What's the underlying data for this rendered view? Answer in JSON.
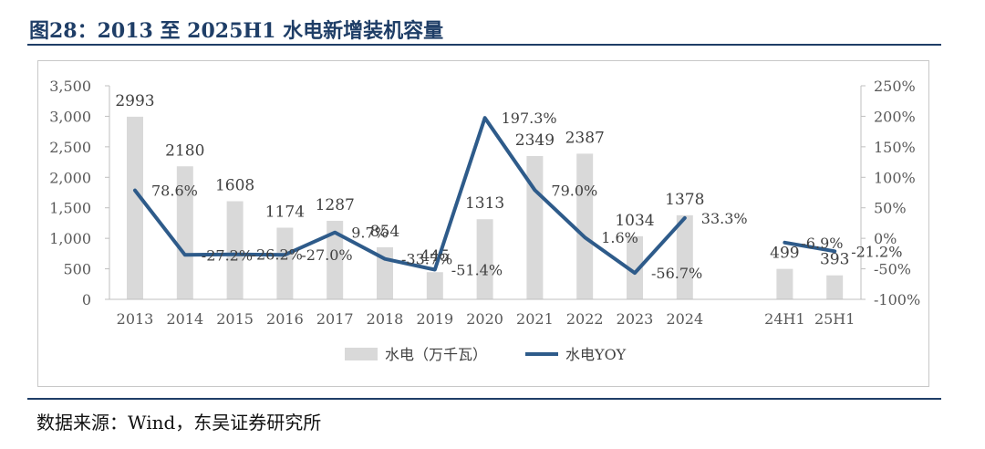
{
  "header": {
    "title": "图28：2013 至 2025H1 水电新增装机容量"
  },
  "footer": {
    "source": "数据来源：Wind，东吴证券研究所"
  },
  "colors": {
    "bar": "#d9d9d9",
    "line": "#2e5b8a",
    "title": "#1f3e67"
  },
  "chart_data": {
    "type": "bar",
    "title": "",
    "categories": [
      "2013",
      "2014",
      "2015",
      "2016",
      "2017",
      "2018",
      "2019",
      "2020",
      "2021",
      "2022",
      "2023",
      "2024",
      "",
      "24H1",
      "25H1"
    ],
    "series": [
      {
        "name": "水电（万千瓦）",
        "type": "bar",
        "axis": "left",
        "values": [
          2993,
          2180,
          1608,
          1174,
          1287,
          854,
          445,
          1313,
          2349,
          2387,
          1034,
          1378,
          null,
          499,
          393
        ],
        "labels": [
          "2993",
          "2180",
          "1608",
          "1174",
          "1287",
          "854",
          "445",
          "1313",
          "2349",
          "2387",
          "1034",
          "1378",
          "",
          "499",
          "393"
        ]
      },
      {
        "name": "水电YOY",
        "type": "line",
        "axis": "right",
        "values": [
          78.6,
          -27.2,
          -26.2,
          -27.0,
          9.7,
          -33.7,
          -51.4,
          197.3,
          79.0,
          1.6,
          -56.7,
          33.3,
          null,
          -6.9,
          -21.2
        ],
        "labels": [
          "78.6%",
          "-27.2%",
          "-26.2%",
          "-27.0%",
          "9.7%",
          "-33.7%",
          "-51.4%",
          "197.3%",
          "79.0%",
          "1.6%",
          "-56.7%",
          "33.3%",
          "",
          "-6.9%",
          "-21.2%"
        ]
      }
    ],
    "y_left": {
      "ylim": [
        0,
        3500
      ],
      "ticks": [
        "0",
        "500",
        "1,000",
        "1,500",
        "2,000",
        "2,500",
        "3,000",
        "3,500"
      ]
    },
    "y_right": {
      "ylim": [
        -100,
        250
      ],
      "ticks": [
        "-100%",
        "-50%",
        "0%",
        "50%",
        "100%",
        "150%",
        "200%",
        "250%"
      ]
    },
    "grid": false,
    "legend_position": "bottom"
  }
}
